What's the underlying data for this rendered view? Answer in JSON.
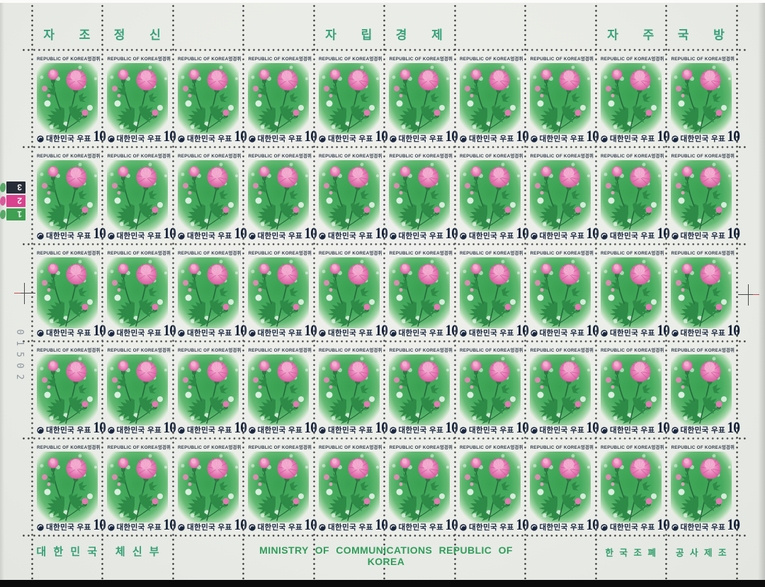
{
  "sheet": {
    "top_slogans": [
      {
        "text": "자 조",
        "col": 0
      },
      {
        "text": "정 신",
        "col": 1
      },
      {
        "text": "자 립",
        "col": 4
      },
      {
        "text": "경 제",
        "col": 5
      },
      {
        "text": "자 주",
        "col": 8
      },
      {
        "text": "국 방",
        "col": 9
      }
    ],
    "bottom_left_labels": [
      {
        "text": "대 한 민 국",
        "col": 0
      },
      {
        "text": "체 신 부",
        "col": 1
      }
    ],
    "bottom_center_text": "MINISTRY OF COMMUNICATIONS REPUBLIC OF KOREA",
    "bottom_right_labels": [
      {
        "text": "한 국 조 폐",
        "col": 8
      },
      {
        "text": "공 사 제 조",
        "col": 9
      }
    ],
    "grid": {
      "rows": 5,
      "cols": 10,
      "stamp_count": 50
    },
    "stamp": {
      "country_en": "REPUBLIC OF KOREA",
      "flower_name_kr": "엉겅퀴",
      "country_kr": "대한민국 우표",
      "denomination": "10"
    },
    "margin_marks": {
      "color_bars": [
        {
          "label": "3",
          "color": "#252c36",
          "scribble_color": "#3f9f52"
        },
        {
          "label": "2",
          "color": "#d9418f",
          "scribble_color": "#d9418f"
        },
        {
          "label": "1",
          "color": "#3f9f52",
          "scribble_color": "#3f9f52"
        }
      ],
      "sheet_number": "01502"
    },
    "colors": {
      "paper": "#e9ebe6",
      "margin_text_green": "#2f9e6a",
      "slogan_green": "#35a17a",
      "stamp_green": "#3fa657",
      "flower_pink": "#e583b7",
      "ink_navy": "#1b2840",
      "perforation_dot": "#3c3c3c"
    }
  }
}
